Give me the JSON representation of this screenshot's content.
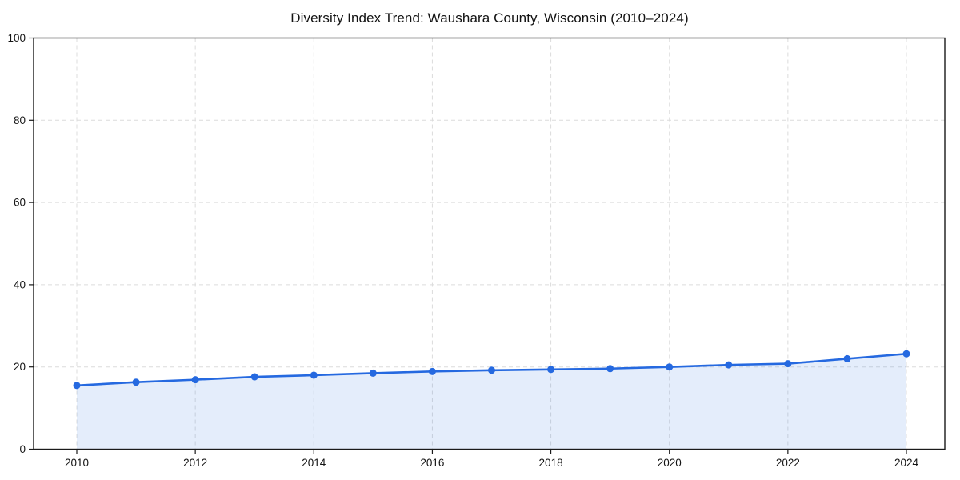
{
  "chart_data": {
    "type": "line",
    "title": "Diversity Index Trend: Waushara County, Wisconsin (2010–2024)",
    "xlabel": "",
    "ylabel": "",
    "x": [
      2010,
      2011,
      2012,
      2013,
      2014,
      2015,
      2016,
      2017,
      2018,
      2019,
      2020,
      2021,
      2022,
      2023,
      2024
    ],
    "series": [
      {
        "name": "Diversity Index",
        "values": [
          15.5,
          16.3,
          16.9,
          17.6,
          18.0,
          18.5,
          18.9,
          19.2,
          19.4,
          19.6,
          20.0,
          20.5,
          20.8,
          22.0,
          23.2
        ]
      }
    ],
    "xticks": [
      2010,
      2012,
      2014,
      2016,
      2018,
      2020,
      2022,
      2024
    ],
    "yticks": [
      0,
      20,
      40,
      60,
      80,
      100
    ],
    "ylim": [
      0,
      100
    ],
    "grid": true,
    "grid_style": "dashed",
    "legend": false,
    "marker": "circle",
    "area_fill": true,
    "colors": {
      "line": "#2569e0",
      "marker": "#2569e0",
      "fill": "rgba(37, 105, 224, 0.12)",
      "grid": "#dcdcdc",
      "axis": "#1a1a1a",
      "text": "#141414",
      "background": "#ffffff"
    }
  }
}
